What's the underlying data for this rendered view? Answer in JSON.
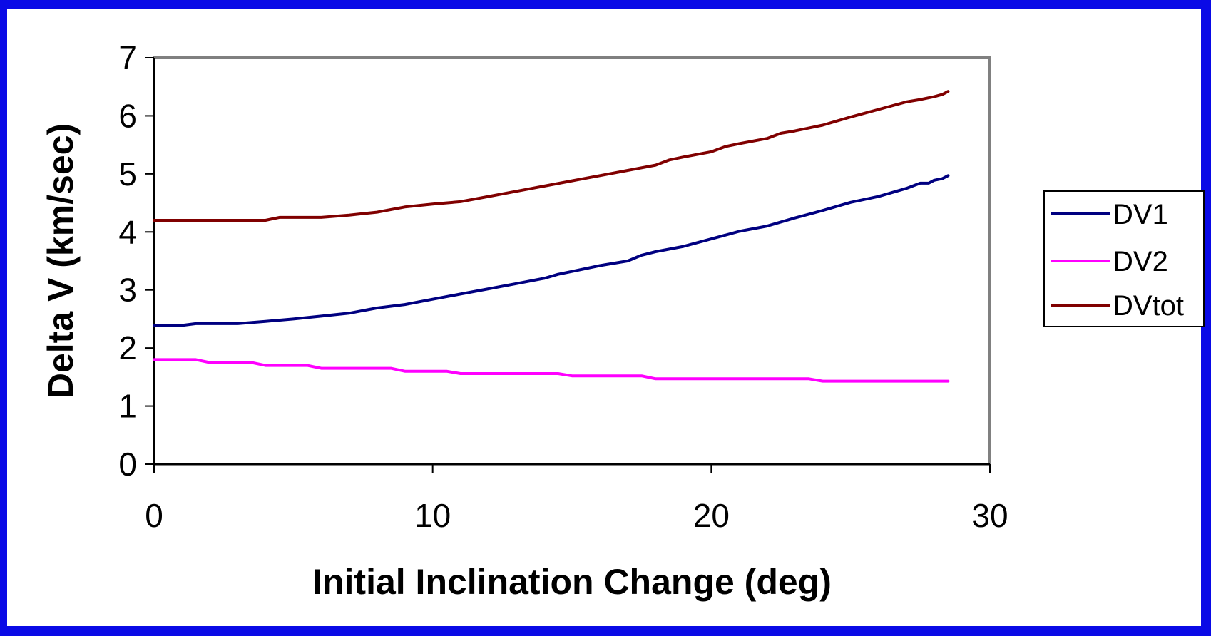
{
  "chart_data": {
    "type": "line",
    "xlabel": "Initial Inclination Change (deg)",
    "ylabel": "Delta V (km/sec)",
    "xlim": [
      0,
      30
    ],
    "ylim": [
      0,
      7
    ],
    "xticks": [
      0,
      10,
      20,
      30
    ],
    "yticks": [
      0,
      1,
      2,
      3,
      4,
      5,
      6,
      7
    ],
    "grid": false,
    "legend_position": "right",
    "series": [
      {
        "name": "DV1",
        "color": "#000080",
        "points": [
          [
            0,
            2.39
          ],
          [
            1,
            2.39
          ],
          [
            1.5,
            2.42
          ],
          [
            3,
            2.42
          ],
          [
            4,
            2.46
          ],
          [
            5,
            2.5
          ],
          [
            6,
            2.55
          ],
          [
            7,
            2.6
          ],
          [
            8,
            2.69
          ],
          [
            9,
            2.75
          ],
          [
            10,
            2.84
          ],
          [
            11,
            2.93
          ],
          [
            12,
            3.02
          ],
          [
            13,
            3.11
          ],
          [
            14,
            3.2
          ],
          [
            14.5,
            3.27
          ],
          [
            15,
            3.32
          ],
          [
            16,
            3.42
          ],
          [
            17,
            3.5
          ],
          [
            17.5,
            3.6
          ],
          [
            18,
            3.66
          ],
          [
            19,
            3.75
          ],
          [
            20,
            3.88
          ],
          [
            21,
            4.01
          ],
          [
            22,
            4.1
          ],
          [
            23,
            4.24
          ],
          [
            24,
            4.37
          ],
          [
            25,
            4.51
          ],
          [
            26,
            4.61
          ],
          [
            27,
            4.75
          ],
          [
            27.5,
            4.84
          ],
          [
            27.8,
            4.84
          ],
          [
            28,
            4.89
          ],
          [
            28.3,
            4.92
          ],
          [
            28.5,
            4.97
          ]
        ]
      },
      {
        "name": "DV2",
        "color": "#ff00ff",
        "points": [
          [
            0,
            1.8
          ],
          [
            1.5,
            1.8
          ],
          [
            2,
            1.75
          ],
          [
            3.5,
            1.75
          ],
          [
            4,
            1.7
          ],
          [
            5.5,
            1.7
          ],
          [
            6,
            1.65
          ],
          [
            8.5,
            1.65
          ],
          [
            9,
            1.6
          ],
          [
            10.5,
            1.6
          ],
          [
            11,
            1.56
          ],
          [
            14.5,
            1.56
          ],
          [
            15,
            1.52
          ],
          [
            17.5,
            1.52
          ],
          [
            18,
            1.47
          ],
          [
            23.5,
            1.47
          ],
          [
            24,
            1.43
          ],
          [
            28.5,
            1.43
          ]
        ]
      },
      {
        "name": "DVtot",
        "color": "#800000",
        "points": [
          [
            0,
            4.2
          ],
          [
            4,
            4.2
          ],
          [
            4.5,
            4.25
          ],
          [
            6,
            4.25
          ],
          [
            7,
            4.29
          ],
          [
            8,
            4.34
          ],
          [
            9,
            4.43
          ],
          [
            10,
            4.48
          ],
          [
            11,
            4.52
          ],
          [
            12,
            4.61
          ],
          [
            13,
            4.7
          ],
          [
            14,
            4.79
          ],
          [
            15,
            4.88
          ],
          [
            16,
            4.97
          ],
          [
            17,
            5.06
          ],
          [
            18,
            5.15
          ],
          [
            18.5,
            5.24
          ],
          [
            19,
            5.29
          ],
          [
            20,
            5.38
          ],
          [
            20.5,
            5.47
          ],
          [
            21,
            5.52
          ],
          [
            22,
            5.61
          ],
          [
            22.5,
            5.7
          ],
          [
            23,
            5.74
          ],
          [
            24,
            5.84
          ],
          [
            25,
            5.98
          ],
          [
            26,
            6.11
          ],
          [
            27,
            6.24
          ],
          [
            27.5,
            6.28
          ],
          [
            28,
            6.33
          ],
          [
            28.3,
            6.37
          ],
          [
            28.5,
            6.42
          ]
        ]
      }
    ]
  }
}
